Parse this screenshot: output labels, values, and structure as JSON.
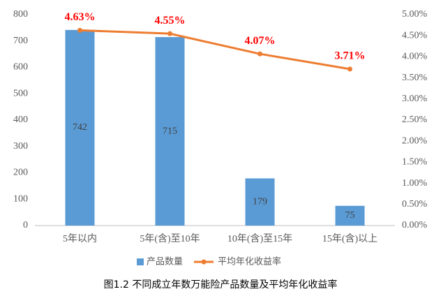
{
  "chart_data": {
    "type": "bar+line",
    "caption": "图1.2 不同成立年数万能险产品数量及平均年化收益率",
    "categories": [
      "5年以内",
      "5年(含)至10年",
      "10年(含)至15年",
      "15年(含)以上"
    ],
    "series": [
      {
        "name": "产品数量",
        "type": "bar",
        "color": "#5b9bd5",
        "values": [
          742,
          715,
          179,
          75
        ]
      },
      {
        "name": "平均年化收益率",
        "type": "line",
        "axis": "y2",
        "color": "#ed7d31",
        "values": [
          4.63,
          4.55,
          4.07,
          3.71
        ],
        "value_labels": [
          "4.63%",
          "4.55%",
          "4.07%",
          "3.71%"
        ]
      }
    ],
    "ylim": [
      0,
      800
    ],
    "yticks": [
      0,
      100,
      200,
      300,
      400,
      500,
      600,
      700,
      800
    ],
    "y2lim": [
      0,
      5
    ],
    "y2ticks": [
      {
        "value": 0,
        "label": "0.00%"
      },
      {
        "value": 0.5,
        "label": "0.50%"
      },
      {
        "value": 1,
        "label": "1.00%"
      },
      {
        "value": 1.5,
        "label": "1.50%"
      },
      {
        "value": 2,
        "label": "2.00%"
      },
      {
        "value": 2.5,
        "label": "2.50%"
      },
      {
        "value": 3,
        "label": "3.00%"
      },
      {
        "value": 3.5,
        "label": "3.50%"
      },
      {
        "value": 4,
        "label": "4.00%"
      },
      {
        "value": 4.5,
        "label": "4.50%"
      },
      {
        "value": 5,
        "label": "5.00%"
      }
    ],
    "grid": false,
    "legend": "bottom"
  }
}
